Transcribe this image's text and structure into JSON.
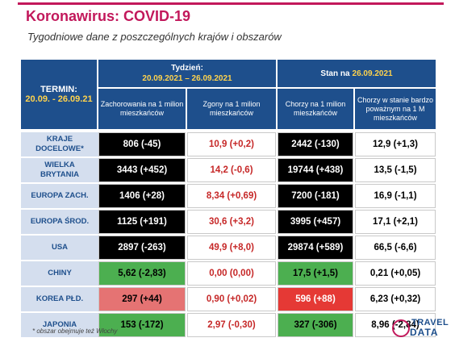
{
  "title": "Koronawirus: COVID-19",
  "subtitle": "Tygodniowe dane z poszczególnych krajów i obszarów",
  "header": {
    "termin_label": "TERMIN:",
    "termin_dates": "20.09. - 26.09.21",
    "week_label": "Tydzień:",
    "week_dates": "20.09.2021 – 26.09.2021",
    "stan_label": "Stan na",
    "stan_date": "26.09.2021",
    "col1": "Zachorowania na 1 milion mieszkańców",
    "col2": "Zgony na 1 milion mieszkańców",
    "col3": "Chorzy na 1 milion mieszkańców",
    "col4": "Chorzy w stanie bardzo poważnym na 1 M mieszkańców"
  },
  "rows": [
    {
      "label1": "KRAJE",
      "label2": "DOCELOWE*",
      "c1": "806 (-45)",
      "c2": "10,9 (+0,2)",
      "c3": "2442 (-130)",
      "c4": "12,9 (+1,3)"
    },
    {
      "label1": "WIELKA",
      "label2": "BRYTANIA",
      "c1": "3443 (+452)",
      "c2": "14,2 (-0,6)",
      "c3": "19744 (+438)",
      "c4": "13,5 (-1,5)"
    },
    {
      "label1": "EUROPA ZACH.",
      "label2": "",
      "c1": "1406 (+28)",
      "c2": "8,34 (+0,69)",
      "c3": "7200 (-181)",
      "c4": "16,9 (-1,1)"
    },
    {
      "label1": "EUROPA ŚROD.",
      "label2": "",
      "c1": "1125 (+191)",
      "c2": "30,6 (+3,2)",
      "c3": "3995 (+457)",
      "c4": "17,1 (+2,1)"
    },
    {
      "label1": "USA",
      "label2": "",
      "c1": "2897 (-263)",
      "c2": "49,9 (+8,0)",
      "c3": "29874 (+589)",
      "c4": "66,5 (-6,6)"
    },
    {
      "label1": "CHINY",
      "label2": "",
      "c1": "5,62 (-2,83)",
      "c2": "0,00 (0,00)",
      "c3": "17,5 (+1,5)",
      "c4": "0,21 (+0,05)"
    },
    {
      "label1": "KOREA PŁD.",
      "label2": "",
      "c1": "297 (+44)",
      "c2": "0,90 (+0,02)",
      "c3": "596 (+88)",
      "c4": "6,23 (+0,32)"
    },
    {
      "label1": "JAPONIA",
      "label2": "",
      "c1": "153 (-172)",
      "c2": "2,97 (-0,30)",
      "c3": "327 (-306)",
      "c4": "8,96 (-2,84)"
    }
  ],
  "footnote": "* obszar obejmuje też Włochy",
  "logo": {
    "line1": "TRAVEL",
    "line2": "DATA"
  },
  "colors": {
    "header_blue": "#1e4f8c",
    "header_yellow": "#ffd34d",
    "brand_magenta": "#c2185b",
    "black": "#000000",
    "green": "#4caf50",
    "light_red": "#e57373",
    "bright_red": "#e53935",
    "death_text_red": "#c62828"
  }
}
